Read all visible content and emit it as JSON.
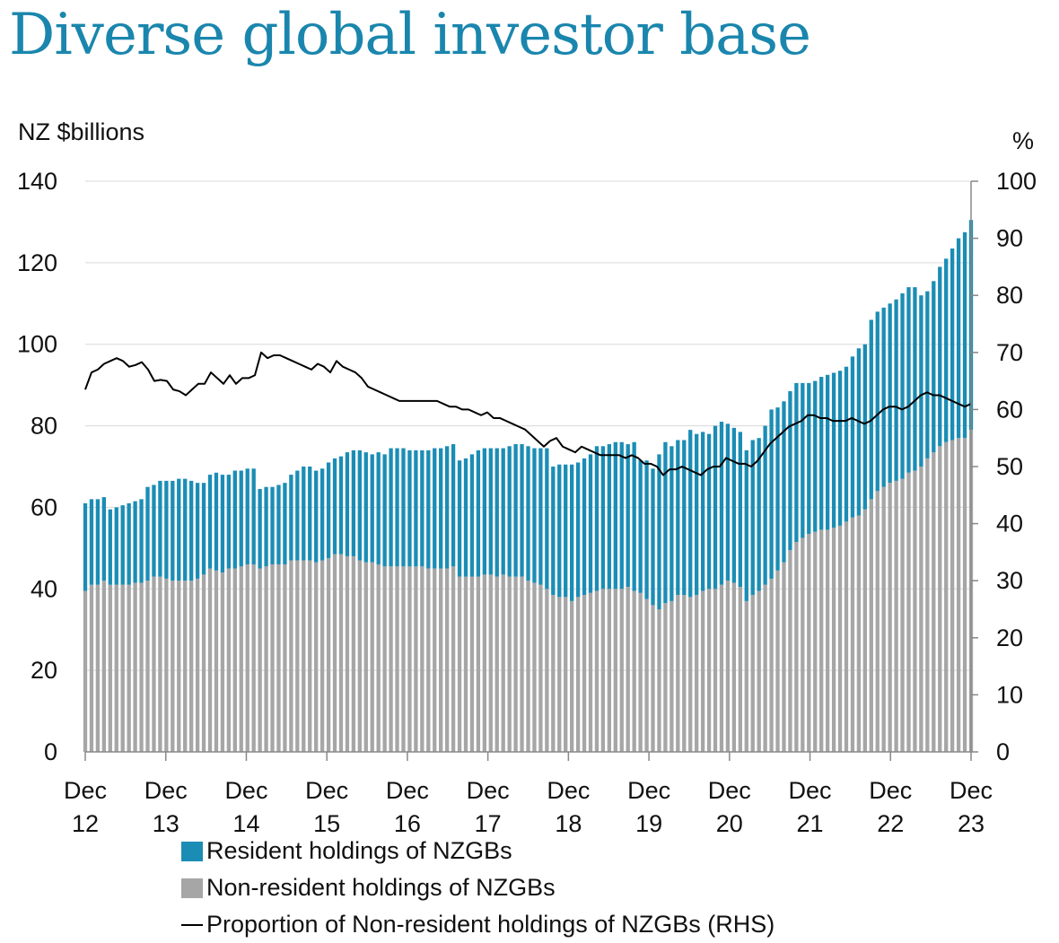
{
  "title": "Diverse global investor base",
  "chart_data": {
    "type": "bar",
    "stacked": true,
    "ylabel_left": "NZ $billions",
    "ylabel_right": "%",
    "ylim_left": [
      0,
      140
    ],
    "ylim_right": [
      0,
      100
    ],
    "yticks_left": [
      "0",
      "20",
      "40",
      "60",
      "80",
      "100",
      "120",
      "140"
    ],
    "yticks_right": [
      "0",
      "10",
      "20",
      "30",
      "40",
      "50",
      "60",
      "70",
      "80",
      "90",
      "100"
    ],
    "x_ticks": [
      {
        "month": "Dec",
        "year": "12"
      },
      {
        "month": "Dec",
        "year": "13"
      },
      {
        "month": "Dec",
        "year": "14"
      },
      {
        "month": "Dec",
        "year": "15"
      },
      {
        "month": "Dec",
        "year": "16"
      },
      {
        "month": "Dec",
        "year": "17"
      },
      {
        "month": "Dec",
        "year": "18"
      },
      {
        "month": "Dec",
        "year": "19"
      },
      {
        "month": "Dec",
        "year": "20"
      },
      {
        "month": "Dec",
        "year": "21"
      },
      {
        "month": "Dec",
        "year": "22"
      },
      {
        "month": "Dec",
        "year": "23"
      }
    ],
    "x_start": "2012-12",
    "x_end": "2023-12",
    "series": [
      {
        "name": "Non-resident holdings of NZGBs",
        "color": "#a6a6a6",
        "type": "bar",
        "values": [
          39.5,
          41.0,
          41.0,
          42.0,
          41.0,
          41.0,
          41.0,
          41.0,
          41.5,
          41.5,
          42.0,
          43.0,
          43.0,
          42.5,
          42.0,
          42.0,
          42.0,
          42.0,
          42.5,
          43.5,
          45.0,
          44.5,
          44.0,
          45.0,
          45.0,
          45.5,
          46.0,
          46.0,
          45.0,
          45.5,
          46.0,
          46.0,
          46.0,
          47.0,
          47.0,
          47.0,
          47.0,
          46.5,
          47.0,
          47.5,
          48.5,
          48.5,
          48.0,
          48.0,
          47.0,
          46.5,
          46.5,
          46.0,
          45.5,
          45.5,
          45.5,
          45.5,
          45.5,
          45.5,
          45.5,
          45.0,
          45.0,
          45.0,
          45.0,
          45.5,
          43.0,
          43.0,
          43.0,
          43.0,
          43.5,
          43.5,
          43.0,
          43.5,
          43.0,
          43.0,
          43.0,
          42.0,
          41.5,
          41.0,
          40.0,
          38.5,
          38.0,
          38.0,
          37.0,
          38.0,
          38.5,
          39.0,
          39.5,
          40.0,
          40.0,
          40.0,
          40.0,
          40.5,
          39.5,
          39.0,
          37.5,
          36.0,
          35.0,
          36.5,
          37.0,
          38.5,
          38.5,
          38.0,
          38.5,
          39.5,
          40.0,
          40.0,
          41.0,
          42.0,
          41.5,
          40.5,
          37.0,
          38.5,
          39.5,
          41.0,
          42.5,
          44.5,
          46.5,
          49.5,
          51.5,
          52.5,
          53.5,
          54.0,
          54.5,
          54.5,
          55.0,
          55.5,
          56.5,
          57.5,
          58.0,
          59.5,
          62.0,
          64.0,
          65.0,
          66.0,
          66.5,
          67.0,
          68.5,
          69.0,
          70.0,
          72.0,
          73.5,
          75.0,
          76.0,
          76.5,
          77.0,
          77.0,
          79.0
        ]
      },
      {
        "name": "Resident holdings of NZGBs",
        "color": "#1b8db5",
        "type": "bar",
        "values": [
          21.5,
          21.0,
          21.0,
          20.5,
          18.5,
          19.0,
          19.5,
          20.0,
          20.0,
          20.5,
          23.0,
          22.5,
          23.5,
          24.0,
          24.5,
          25.0,
          25.0,
          24.5,
          23.5,
          22.5,
          23.0,
          24.0,
          24.0,
          23.0,
          24.0,
          23.5,
          23.5,
          23.5,
          19.5,
          19.5,
          19.0,
          19.5,
          20.0,
          21.0,
          22.0,
          23.0,
          23.0,
          22.5,
          22.5,
          23.5,
          23.5,
          24.0,
          25.5,
          26.0,
          27.0,
          27.0,
          26.5,
          27.5,
          27.5,
          29.0,
          29.0,
          29.0,
          28.5,
          28.5,
          28.5,
          29.0,
          29.5,
          29.5,
          30.0,
          30.0,
          28.5,
          29.0,
          30.0,
          31.0,
          31.0,
          31.0,
          31.5,
          31.0,
          32.0,
          32.5,
          32.5,
          33.0,
          33.0,
          33.5,
          34.5,
          31.5,
          32.5,
          32.5,
          33.5,
          33.0,
          33.5,
          34.0,
          35.5,
          35.0,
          35.5,
          36.0,
          36.0,
          35.0,
          36.5,
          32.5,
          34.0,
          33.5,
          38.0,
          39.5,
          38.0,
          38.0,
          38.0,
          41.0,
          39.5,
          39.0,
          38.0,
          40.0,
          40.0,
          38.5,
          38.0,
          38.0,
          37.0,
          38.0,
          37.5,
          39.0,
          41.5,
          40.0,
          39.5,
          39.0,
          39.0,
          38.0,
          37.0,
          37.0,
          37.5,
          38.0,
          38.0,
          38.0,
          38.0,
          39.5,
          41.0,
          40.5,
          44.0,
          44.0,
          44.0,
          44.0,
          44.5,
          45.5,
          45.5,
          45.0,
          42.0,
          41.0,
          42.0,
          44.0,
          45.0,
          47.0,
          49.0,
          50.5,
          51.5
        ]
      },
      {
        "name": "Proportion of Non-resident holdings of NZGBs (RHS)",
        "color": "#000000",
        "type": "line",
        "axis": "right",
        "values": [
          63.5,
          66.5,
          67.0,
          68.0,
          68.5,
          69.0,
          68.5,
          67.5,
          67.8,
          68.3,
          67.0,
          65.0,
          65.2,
          65.0,
          63.5,
          63.2,
          62.5,
          63.5,
          64.5,
          64.5,
          66.5,
          65.5,
          64.5,
          66.0,
          64.5,
          65.5,
          65.5,
          66.0,
          70.0,
          69.0,
          69.5,
          69.5,
          69.0,
          68.5,
          68.0,
          67.5,
          67.0,
          68.0,
          67.5,
          66.5,
          68.5,
          67.5,
          67.0,
          66.5,
          65.5,
          64.0,
          63.5,
          63.0,
          62.5,
          62.0,
          61.5,
          61.5,
          61.5,
          61.5,
          61.5,
          61.5,
          61.5,
          61.0,
          60.5,
          60.5,
          60.0,
          60.0,
          59.5,
          59.0,
          59.5,
          58.5,
          58.5,
          58.0,
          57.5,
          57.0,
          56.5,
          55.5,
          54.5,
          53.5,
          54.5,
          55.0,
          53.5,
          53.0,
          52.5,
          53.5,
          53.0,
          52.5,
          52.0,
          52.0,
          52.0,
          52.0,
          51.5,
          52.0,
          51.5,
          50.5,
          50.5,
          50.0,
          48.5,
          49.5,
          49.5,
          50.0,
          49.5,
          49.0,
          48.5,
          49.5,
          50.0,
          50.0,
          51.5,
          51.0,
          50.5,
          50.5,
          50.0,
          51.0,
          52.5,
          54.0,
          55.0,
          56.0,
          57.0,
          57.5,
          58.0,
          59.0,
          59.0,
          58.5,
          58.5,
          58.0,
          58.0,
          58.0,
          58.5,
          58.0,
          57.5,
          58.0,
          59.0,
          60.0,
          60.5,
          60.5,
          60.0,
          60.5,
          61.5,
          62.5,
          63.0,
          62.5,
          62.5,
          62.0,
          61.5,
          61.0,
          60.5,
          61.0
        ]
      }
    ],
    "legend": {
      "position": "bottom",
      "items": [
        {
          "label": "Resident holdings of NZGBs",
          "color": "#1b8db5",
          "kind": "box"
        },
        {
          "label": "Non-resident holdings of NZGBs",
          "color": "#a6a6a6",
          "kind": "box"
        },
        {
          "label": "Proportion of Non-resident holdings of NZGBs (RHS)",
          "color": "#000000",
          "kind": "line"
        }
      ]
    },
    "grid": true
  }
}
